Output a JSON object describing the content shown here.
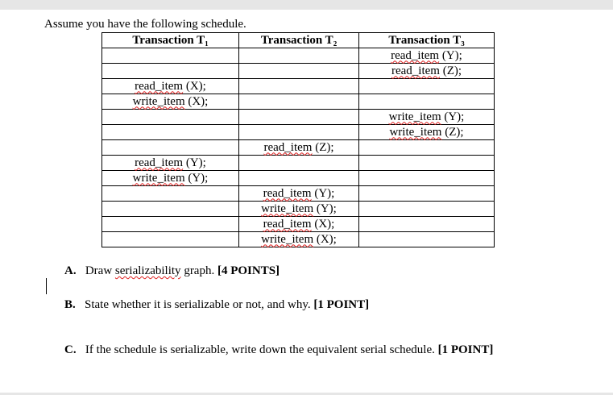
{
  "intro": "Assume you have the following schedule.",
  "table": {
    "headers": [
      "Transaction T₁",
      "Transaction T₂",
      "Transaction T₃"
    ],
    "rows": [
      [
        "",
        "",
        "read_item (Y);"
      ],
      [
        "",
        "",
        "read_item (Z);"
      ],
      [
        "read_item (X);",
        "",
        ""
      ],
      [
        "write_item (X);",
        "",
        ""
      ],
      [
        "",
        "",
        "write_item (Y);"
      ],
      [
        "",
        "",
        "write_item (Z);"
      ],
      [
        "",
        "read_item (Z);",
        ""
      ],
      [
        "read_item (Y);",
        "",
        ""
      ],
      [
        "write_item (Y);",
        "",
        ""
      ],
      [
        "",
        "read_item (Y);",
        ""
      ],
      [
        "",
        "write_item (Y);",
        ""
      ],
      [
        "",
        "read_item (X);",
        ""
      ],
      [
        "",
        "write_item (X);",
        ""
      ]
    ]
  },
  "questions": [
    {
      "letter": "A.",
      "text": "Draw serializability graph.",
      "points": "[4 POINTS]"
    },
    {
      "letter": "B.",
      "text": "State whether it is serializable or not, and why.",
      "points": "[1 POINT]"
    },
    {
      "letter": "C.",
      "text": "If the schedule is serializable, write down the equivalent serial schedule.",
      "points": "[1 POINT]"
    }
  ]
}
